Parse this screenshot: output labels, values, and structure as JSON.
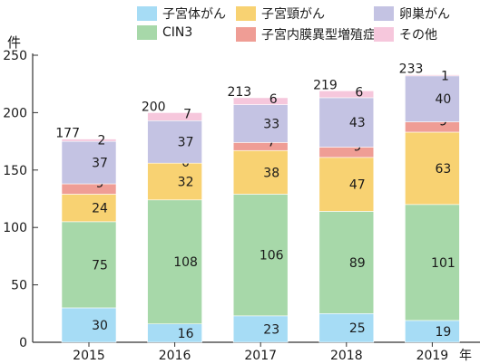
{
  "chart_data": {
    "type": "bar",
    "stacked": true,
    "categories": [
      "2015",
      "2016",
      "2017",
      "2018",
      "2019"
    ],
    "series": [
      {
        "name": "子宮体がん",
        "color": "#a6dcf5",
        "values": [
          30,
          16,
          23,
          25,
          19
        ]
      },
      {
        "name": "CIN3",
        "color": "#a7d8a9",
        "values": [
          75,
          108,
          106,
          89,
          101
        ]
      },
      {
        "name": "子宮頸がん",
        "color": "#f8d272",
        "values": [
          24,
          32,
          38,
          47,
          63
        ]
      },
      {
        "name": "子宮内膜異型増殖症",
        "color": "#ef9d95",
        "values": [
          9,
          0,
          7,
          9,
          9
        ]
      },
      {
        "name": "卵巣がん",
        "color": "#c4c3e3",
        "values": [
          37,
          37,
          33,
          43,
          40
        ]
      },
      {
        "name": "その他",
        "color": "#f6c7dc",
        "values": [
          2,
          7,
          6,
          6,
          1
        ]
      }
    ],
    "totals": [
      177,
      200,
      213,
      219,
      233
    ],
    "ylim": [
      0,
      250
    ],
    "yticks": [
      0,
      50,
      100,
      150,
      200,
      250
    ],
    "ylabel": "件",
    "xlabel": "年",
    "grid": false,
    "legend": "top"
  }
}
